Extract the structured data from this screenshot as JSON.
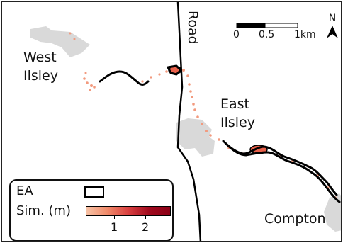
{
  "places": {
    "west_ilsley_line1": "West",
    "west_ilsley_line2": "Ilsley",
    "east_ilsley_line1": "East",
    "east_ilsley_line2": "Ilsley",
    "compton": "Compton"
  },
  "road_label": "Road",
  "scale_bar": {
    "labels": [
      "0",
      "0.5",
      "1km"
    ]
  },
  "north_arrow": {
    "label": "N",
    "icon": "north-arrow-icon"
  },
  "legend": {
    "ea_label": "EA",
    "sim_label": "Sim. (m)",
    "ticks": [
      "1",
      "2"
    ],
    "gradient_colors": [
      "#f7c2a5",
      "#f08a6a",
      "#d94040",
      "#a00a1e",
      "#8b0016"
    ]
  },
  "colors": {
    "settlement": "#d9d9d9",
    "road": "#000000",
    "ea_outline": "#000000",
    "sim_low": "#f7c2a5",
    "sim_high": "#8b0016"
  }
}
